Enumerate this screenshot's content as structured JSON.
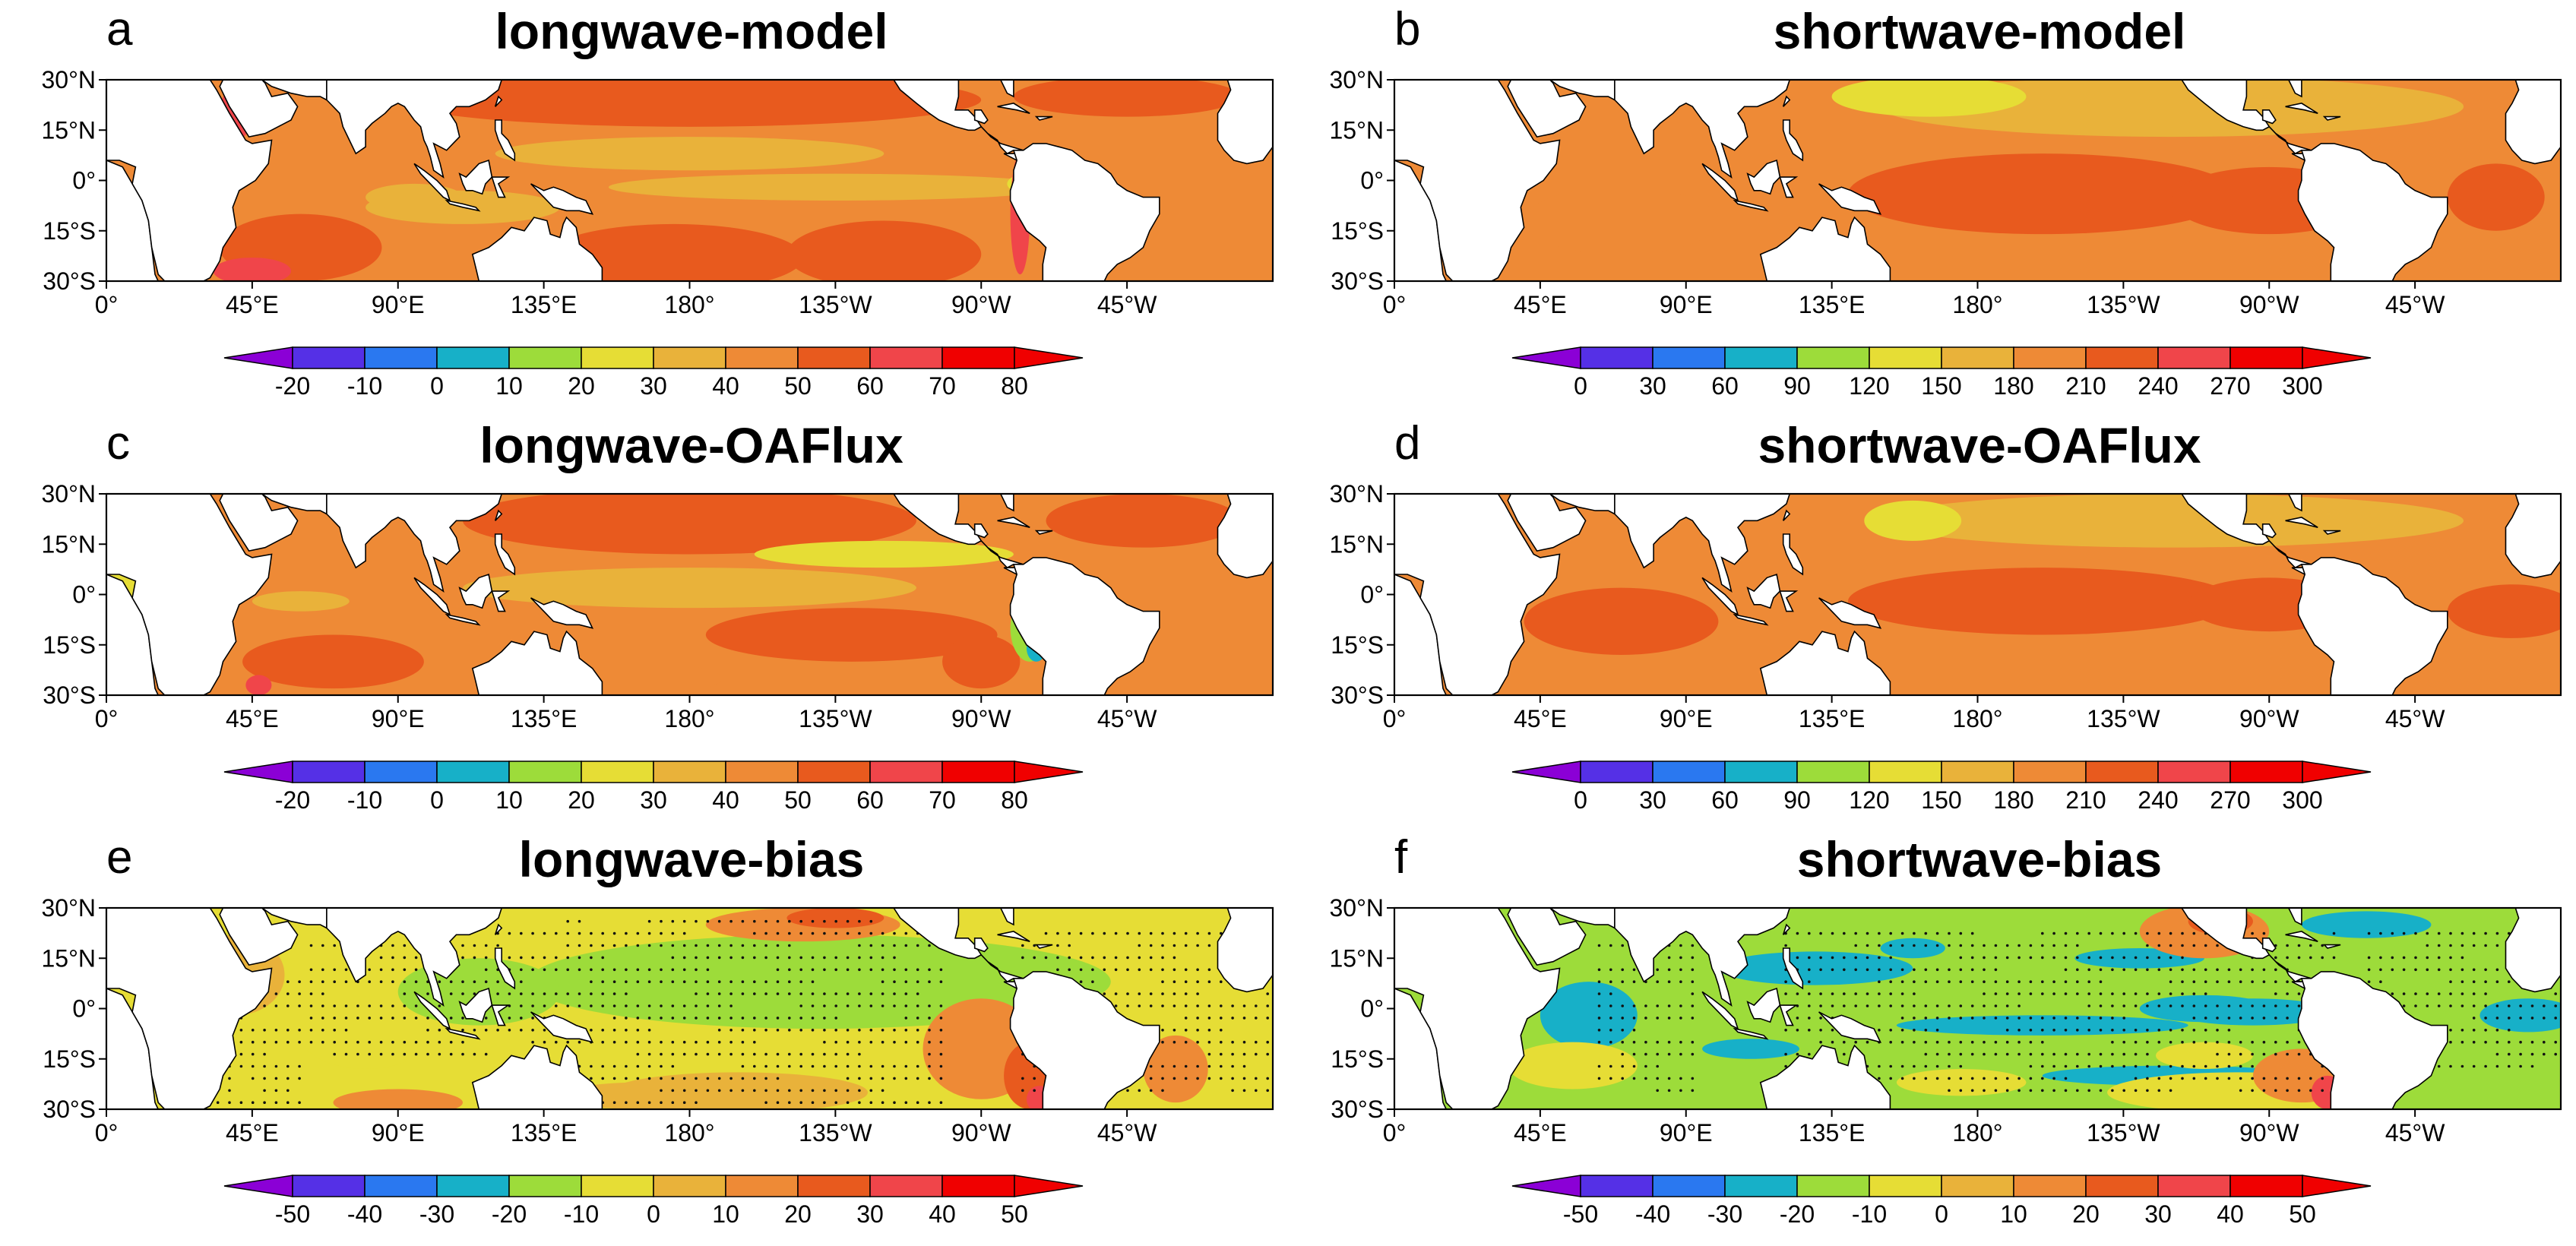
{
  "figure": {
    "latitude_labels": [
      "30°N",
      "15°N",
      "0°",
      "15°S",
      "30°S"
    ],
    "longitude_labels": [
      "0°",
      "45°E",
      "90°E",
      "135°E",
      "180°",
      "135°W",
      "90°W",
      "45°W"
    ]
  },
  "palette": [
    "#8b00d6",
    "#5530e6",
    "#2a78f0",
    "#17b0c8",
    "#9ddc3a",
    "#e6dd35",
    "#e9b23a",
    "#ee8a36",
    "#e85a1e",
    "#f0454a",
    "#f00000"
  ],
  "panels": [
    {
      "letter": "a",
      "title": "longwave-model",
      "colorbar": [
        "-20",
        "-10",
        "0",
        "10",
        "20",
        "30",
        "40",
        "50",
        "60",
        "70",
        "80"
      ],
      "field": "lw_model",
      "stipple": false
    },
    {
      "letter": "b",
      "title": "shortwave-model",
      "colorbar": [
        "0",
        "30",
        "60",
        "90",
        "120",
        "150",
        "180",
        "210",
        "240",
        "270",
        "300"
      ],
      "field": "sw_model",
      "stipple": false
    },
    {
      "letter": "c",
      "title": "longwave-OAFlux",
      "colorbar": [
        "-20",
        "-10",
        "0",
        "10",
        "20",
        "30",
        "40",
        "50",
        "60",
        "70",
        "80"
      ],
      "field": "lw_obs",
      "stipple": false
    },
    {
      "letter": "d",
      "title": "shortwave-OAFlux",
      "colorbar": [
        "0",
        "30",
        "60",
        "90",
        "120",
        "150",
        "180",
        "210",
        "240",
        "270",
        "300"
      ],
      "field": "sw_obs",
      "stipple": false
    },
    {
      "letter": "e",
      "title": "longwave-bias",
      "colorbar": [
        "-50",
        "-40",
        "-30",
        "-20",
        "-10",
        "0",
        "10",
        "20",
        "30",
        "40",
        "50"
      ],
      "field": "lw_bias",
      "stipple": true
    },
    {
      "letter": "f",
      "title": "shortwave-bias",
      "colorbar": [
        "-50",
        "-40",
        "-30",
        "-20",
        "-10",
        "0",
        "10",
        "20",
        "30",
        "40",
        "50"
      ],
      "field": "sw_bias",
      "stipple": true
    }
  ]
}
